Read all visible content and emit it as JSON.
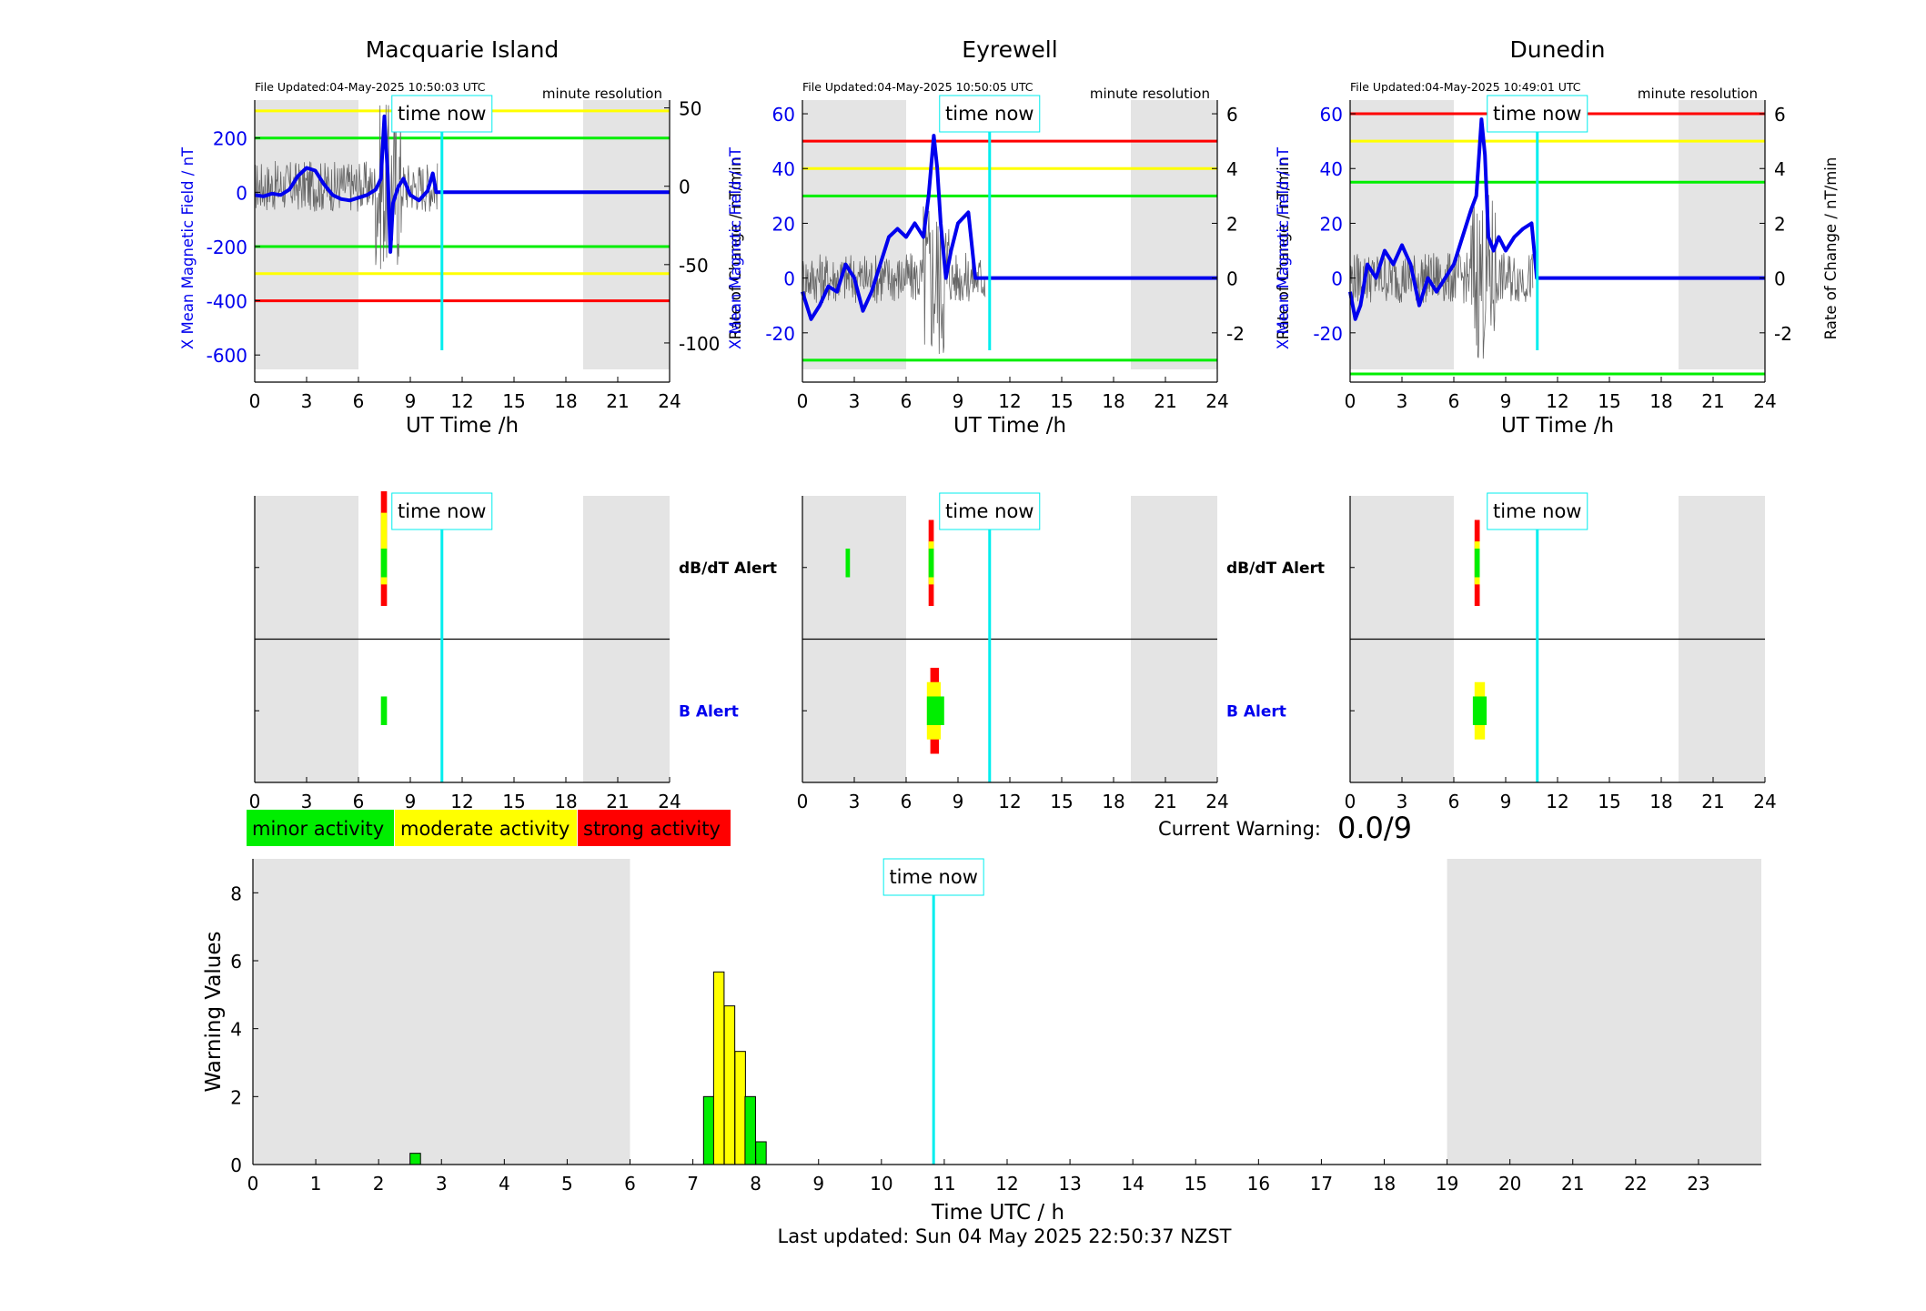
{
  "colors": {
    "shade": "#e4e4e4",
    "mean_field": "#0000ee",
    "rate": "#666666",
    "red": "#ff0000",
    "yellow": "#ffff00",
    "green": "#00ee00",
    "now": "#00eeee",
    "axis_blue": "#0000ee"
  },
  "labels": {
    "time_now": "time now",
    "file_prefix": "File Updated:",
    "resolution": "minute resolution",
    "ut_axis": "UT Time /h",
    "left_axis": "X Mean Magnetic Field / nT",
    "right_axis": "Rate of Change / nT/min",
    "dbdt_alert": "dB/dT Alert",
    "b_alert": "B Alert"
  },
  "legend": [
    "minor activity",
    "moderate activity",
    "strong activity"
  ],
  "current_warning": {
    "label": "Current Warning:",
    "value": "0.0/9"
  },
  "footer": "Last updated: Sun 04 May 2025 22:50:37 NZST",
  "stations": [
    {
      "name": "Macquarie Island",
      "updated": "04-May-2025 10:50:03 UTC",
      "left_ylim": [
        -700,
        340
      ],
      "left_ticks": [
        "200",
        "0",
        "-200",
        "-400",
        "-600"
      ],
      "left_tick_values": [
        200,
        0,
        -200,
        -400,
        -600
      ],
      "right_ylim": [
        -125,
        55
      ],
      "right_ticks": [
        "50",
        "0",
        "-50",
        "-100"
      ],
      "right_tick_values": [
        50,
        0,
        -50,
        -100
      ],
      "thresholds": [
        {
          "level": "yellow",
          "value": 300
        },
        {
          "level": "green",
          "value": 200
        },
        {
          "level": "green",
          "value": -200
        },
        {
          "level": "yellow",
          "value": -300
        },
        {
          "level": "red",
          "value": -400
        }
      ],
      "mean_trace": [
        [
          0,
          -10
        ],
        [
          0.5,
          -15
        ],
        [
          1,
          -5
        ],
        [
          1.5,
          -10
        ],
        [
          2,
          10
        ],
        [
          2.5,
          60
        ],
        [
          3,
          90
        ],
        [
          3.5,
          80
        ],
        [
          4,
          30
        ],
        [
          4.5,
          -10
        ],
        [
          5,
          -25
        ],
        [
          5.5,
          -30
        ],
        [
          6,
          -20
        ],
        [
          6.5,
          -10
        ],
        [
          7,
          10
        ],
        [
          7.3,
          50
        ],
        [
          7.5,
          280
        ],
        [
          7.7,
          60
        ],
        [
          7.85,
          -220
        ],
        [
          8,
          -40
        ],
        [
          8.3,
          20
        ],
        [
          8.6,
          50
        ],
        [
          9,
          -10
        ],
        [
          9.5,
          -30
        ],
        [
          10,
          5
        ],
        [
          10.3,
          70
        ],
        [
          10.5,
          0
        ],
        [
          10.8,
          0
        ],
        [
          24,
          0
        ]
      ],
      "alerts_dbdt": [
        {
          "t0": 7.3,
          "t1": 7.65,
          "level": "red",
          "lo": 0.2,
          "hi": 1.0
        },
        {
          "t0": 7.3,
          "t1": 7.65,
          "level": "yellow",
          "lo": 0.35,
          "hi": 0.85
        },
        {
          "t0": 7.3,
          "t1": 7.65,
          "level": "green",
          "lo": 0.4,
          "hi": 0.6
        }
      ],
      "alerts_b": [
        {
          "t0": 7.3,
          "t1": 7.65,
          "level": "green",
          "lo": 0.4,
          "hi": 0.6
        }
      ]
    },
    {
      "name": "Eyrewell",
      "updated": "04-May-2025 10:50:05 UTC",
      "left_ylim": [
        -38,
        65
      ],
      "left_ticks": [
        "60",
        "40",
        "20",
        "0",
        "-20"
      ],
      "left_tick_values": [
        60,
        40,
        20,
        0,
        -20
      ],
      "right_ylim": [
        -3.8,
        6.5
      ],
      "right_ticks": [
        "6",
        "4",
        "2",
        "0",
        "-2"
      ],
      "right_tick_values": [
        6,
        4,
        2,
        0,
        -2
      ],
      "thresholds": [
        {
          "level": "red",
          "value": 50
        },
        {
          "level": "yellow",
          "value": 40
        },
        {
          "level": "green",
          "value": 30
        },
        {
          "level": "green",
          "value": -30
        }
      ],
      "mean_trace": [
        [
          0,
          -5
        ],
        [
          0.5,
          -15
        ],
        [
          1,
          -10
        ],
        [
          1.5,
          -3
        ],
        [
          2,
          -5
        ],
        [
          2.5,
          5
        ],
        [
          3,
          0
        ],
        [
          3.5,
          -12
        ],
        [
          4,
          -5
        ],
        [
          4.5,
          5
        ],
        [
          5,
          15
        ],
        [
          5.5,
          18
        ],
        [
          6,
          15
        ],
        [
          6.5,
          20
        ],
        [
          7,
          15
        ],
        [
          7.3,
          30
        ],
        [
          7.6,
          52
        ],
        [
          7.8,
          40
        ],
        [
          8,
          20
        ],
        [
          8.3,
          0
        ],
        [
          8.6,
          10
        ],
        [
          9,
          20
        ],
        [
          9.3,
          22
        ],
        [
          9.6,
          24
        ],
        [
          10,
          0
        ],
        [
          10.8,
          0
        ],
        [
          24,
          0
        ]
      ],
      "alerts_dbdt": [
        {
          "t0": 2.5,
          "t1": 2.75,
          "level": "green",
          "lo": 0.4,
          "hi": 0.6
        },
        {
          "t0": 7.3,
          "t1": 7.6,
          "level": "red",
          "lo": 0.2,
          "hi": 0.8
        },
        {
          "t0": 7.3,
          "t1": 7.6,
          "level": "yellow",
          "lo": 0.35,
          "hi": 0.65
        },
        {
          "t0": 7.3,
          "t1": 7.6,
          "level": "green",
          "lo": 0.4,
          "hi": 0.6
        }
      ],
      "alerts_b": [
        {
          "t0": 7.4,
          "t1": 7.9,
          "level": "red",
          "lo": 0.2,
          "hi": 0.8
        },
        {
          "t0": 7.2,
          "t1": 8.0,
          "level": "yellow",
          "lo": 0.3,
          "hi": 0.7
        },
        {
          "t0": 7.2,
          "t1": 8.2,
          "level": "green",
          "lo": 0.4,
          "hi": 0.6
        }
      ]
    },
    {
      "name": "Dunedin",
      "updated": "04-May-2025 10:49:01 UTC",
      "left_ylim": [
        -38,
        65
      ],
      "left_ticks": [
        "60",
        "40",
        "20",
        "0",
        "-20"
      ],
      "left_tick_values": [
        60,
        40,
        20,
        0,
        -20
      ],
      "right_ylim": [
        -3.8,
        6.5
      ],
      "right_ticks": [
        "6",
        "4",
        "2",
        "0",
        "-2"
      ],
      "right_tick_values": [
        6,
        4,
        2,
        0,
        -2
      ],
      "thresholds": [
        {
          "level": "red",
          "value": 60
        },
        {
          "level": "yellow",
          "value": 50
        },
        {
          "level": "green",
          "value": 35
        },
        {
          "level": "green",
          "value": -35
        }
      ],
      "mean_trace": [
        [
          0,
          -5
        ],
        [
          0.3,
          -15
        ],
        [
          0.6,
          -10
        ],
        [
          1,
          5
        ],
        [
          1.5,
          0
        ],
        [
          2,
          10
        ],
        [
          2.5,
          5
        ],
        [
          3,
          12
        ],
        [
          3.5,
          5
        ],
        [
          4,
          -10
        ],
        [
          4.5,
          0
        ],
        [
          5,
          -5
        ],
        [
          5.5,
          0
        ],
        [
          6,
          5
        ],
        [
          6.5,
          15
        ],
        [
          7,
          25
        ],
        [
          7.3,
          30
        ],
        [
          7.6,
          58
        ],
        [
          7.8,
          45
        ],
        [
          8,
          15
        ],
        [
          8.3,
          10
        ],
        [
          8.6,
          15
        ],
        [
          9,
          10
        ],
        [
          9.5,
          15
        ],
        [
          10,
          18
        ],
        [
          10.5,
          20
        ],
        [
          10.8,
          0
        ],
        [
          24,
          0
        ]
      ],
      "alerts_dbdt": [
        {
          "t0": 7.2,
          "t1": 7.5,
          "level": "red",
          "lo": 0.2,
          "hi": 0.8
        },
        {
          "t0": 7.2,
          "t1": 7.5,
          "level": "yellow",
          "lo": 0.35,
          "hi": 0.65
        },
        {
          "t0": 7.2,
          "t1": 7.5,
          "level": "green",
          "lo": 0.4,
          "hi": 0.6
        }
      ],
      "alerts_b": [
        {
          "t0": 7.2,
          "t1": 7.8,
          "level": "yellow",
          "lo": 0.3,
          "hi": 0.7
        },
        {
          "t0": 7.1,
          "t1": 7.9,
          "level": "green",
          "lo": 0.4,
          "hi": 0.6
        }
      ]
    }
  ],
  "chart_data": [
    {
      "type": "bar",
      "title": "",
      "xlabel": "Time UTC / h",
      "ylabel": "Warning Values",
      "xlim": [
        0,
        24
      ],
      "ylim": [
        0,
        9
      ],
      "x_ticks": [
        "0",
        "1",
        "2",
        "3",
        "4",
        "5",
        "6",
        "7",
        "8",
        "9",
        "10",
        "11",
        "12",
        "13",
        "14",
        "15",
        "16",
        "17",
        "18",
        "19",
        "20",
        "21",
        "22",
        "23"
      ],
      "y_ticks": [
        "0",
        "2",
        "4",
        "6",
        "8"
      ],
      "shaded_intervals": [
        [
          0,
          6
        ],
        [
          19,
          24
        ]
      ],
      "time_now_h": 10.83,
      "bars": [
        {
          "x": 2.5,
          "value": 0.33,
          "level": "green"
        },
        {
          "x": 7.17,
          "value": 2.0,
          "level": "green"
        },
        {
          "x": 7.33,
          "value": 5.67,
          "level": "yellow"
        },
        {
          "x": 7.5,
          "value": 4.67,
          "level": "yellow"
        },
        {
          "x": 7.67,
          "value": 3.33,
          "level": "yellow"
        },
        {
          "x": 7.83,
          "value": 2.0,
          "level": "green"
        },
        {
          "x": 8.0,
          "value": 0.67,
          "level": "green"
        }
      ]
    }
  ]
}
